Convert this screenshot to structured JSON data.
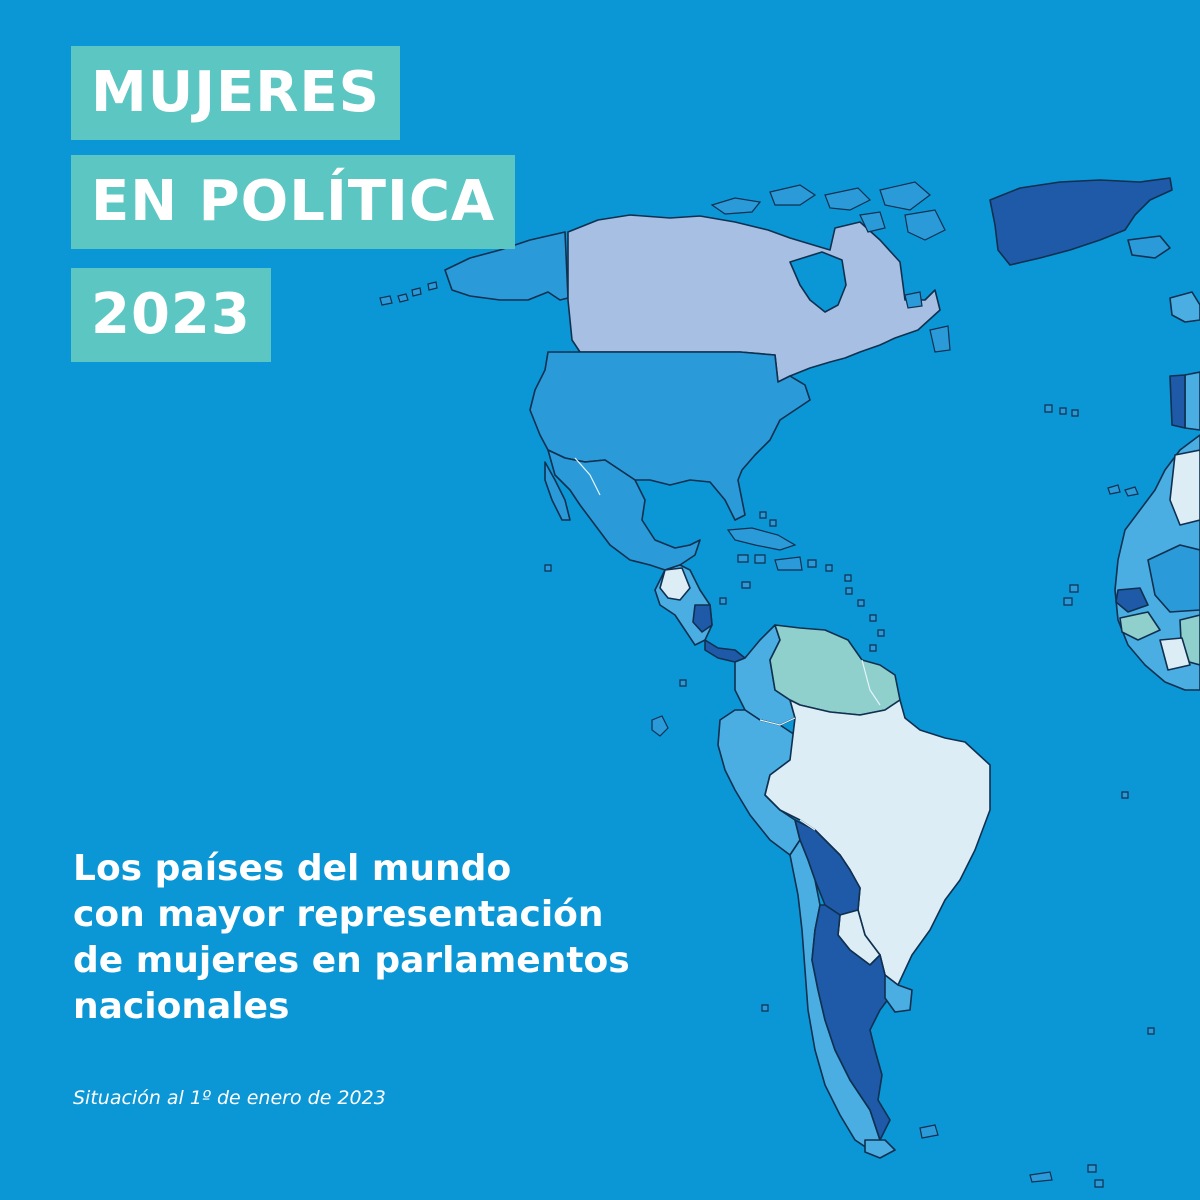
{
  "title_lines": [
    "MUJERES",
    "EN POLÍTICA",
    "2023"
  ],
  "subtitle_lines": [
    "Los países del mundo",
    "con mayor representación",
    "de mujeres en parlamentos",
    "nacionales"
  ],
  "note": "Situación al 1º de enero de 2023",
  "colors": {
    "background": "#0b97d6",
    "title_box": "#5cc6c3",
    "text": "#ffffff",
    "border": "#103050",
    "scale_very_high": "#1e5aa8",
    "scale_high": "#2a9ad9",
    "scale_medium": "#4aaee3",
    "scale_low": "#a6bfe3",
    "scale_teal": "#8fd0cd",
    "scale_very_low": "#dcedf6"
  },
  "map_regions": [
    {
      "name": "canada",
      "level": "low"
    },
    {
      "name": "usa",
      "level": "high"
    },
    {
      "name": "mexico",
      "level": "high"
    },
    {
      "name": "central-america",
      "level": "medium"
    },
    {
      "name": "nicaragua",
      "level": "very_high"
    },
    {
      "name": "greenland",
      "level": "very_high"
    },
    {
      "name": "venezuela-guyana",
      "level": "teal"
    },
    {
      "name": "colombia",
      "level": "medium"
    },
    {
      "name": "peru",
      "level": "medium"
    },
    {
      "name": "brazil",
      "level": "very_low"
    },
    {
      "name": "bolivia",
      "level": "very_high"
    },
    {
      "name": "argentina",
      "level": "very_high"
    },
    {
      "name": "chile",
      "level": "medium"
    },
    {
      "name": "paraguay",
      "level": "very_low"
    },
    {
      "name": "uruguay",
      "level": "medium"
    },
    {
      "name": "iceland",
      "level": "high"
    },
    {
      "name": "portugal",
      "level": "very_high"
    },
    {
      "name": "west-africa",
      "level": "medium"
    }
  ]
}
